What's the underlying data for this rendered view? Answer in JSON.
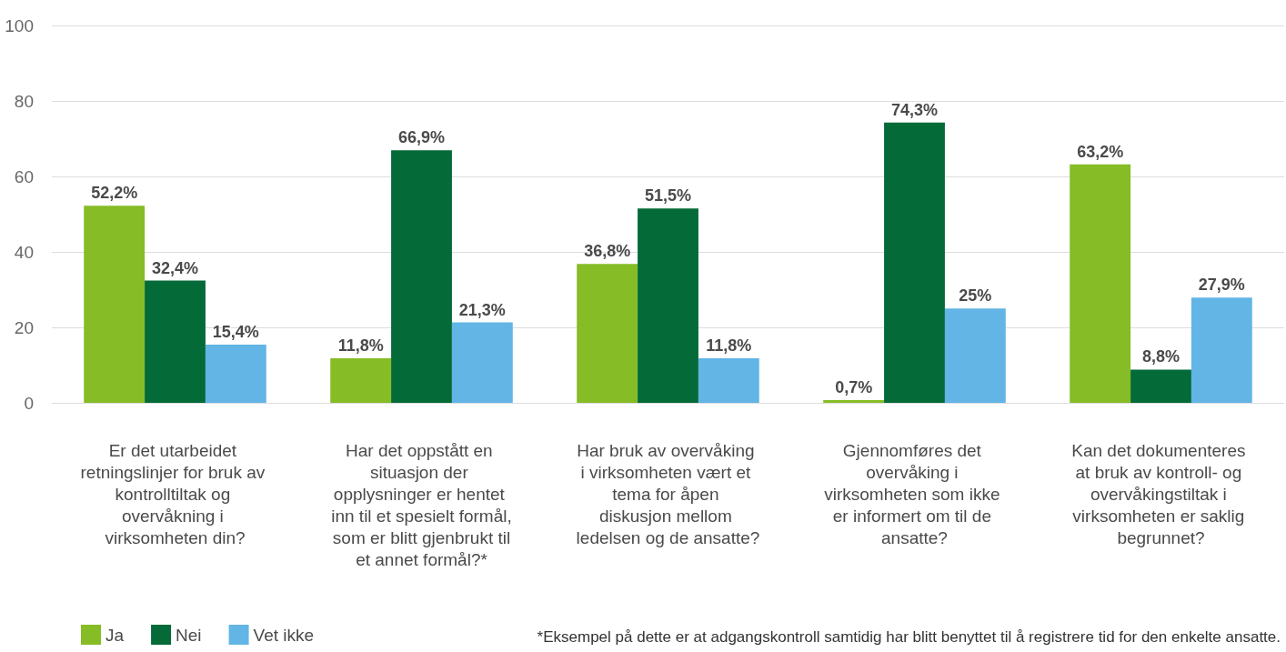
{
  "chart_data": {
    "type": "bar",
    "categories": [
      "Er det utarbeidet retningslinjer for bruk av kontrolltiltak og overvåkning i virksomheten din?",
      "Har det oppstått en situasjon der opplysninger er hentet inn til et spesielt formål, som er blitt gjenbrukt til et annet formål?*",
      "Har bruk av overvåking i virksomheten vært et tema for åpen diskusjon mellom ledelsen og de ansatte?",
      "Gjennomføres det overvåking i virksomheten som ikke er informert om til de ansatte?",
      "Kan det dokumenteres at bruk av kontroll- og overvåkingstiltak i virksomheten er saklig begrunnet?"
    ],
    "series": [
      {
        "name": "Ja",
        "color": "#86bc25",
        "values": [
          52.2,
          11.8,
          36.8,
          0.7,
          63.2
        ],
        "value_labels": [
          "52,2%",
          "11,8%",
          "36,8%",
          "0,7%",
          "63,2%"
        ]
      },
      {
        "name": "Nei",
        "color": "#046a38",
        "values": [
          32.4,
          66.9,
          51.5,
          74.3,
          8.8
        ],
        "value_labels": [
          "32,4%",
          "66,9%",
          "51,5%",
          "74,3%",
          "8,8%"
        ]
      },
      {
        "name": "Vet ikke",
        "color": "#62b5e5",
        "values": [
          15.4,
          21.3,
          11.8,
          25,
          27.9
        ],
        "value_labels": [
          "15,4%",
          "21,3%",
          "11,8%",
          "25%",
          "27,9%"
        ]
      }
    ],
    "ylim": [
      0,
      100
    ],
    "yticks": [
      0,
      20,
      40,
      60,
      80,
      100
    ],
    "grid": "y",
    "legend": "bottom left",
    "annotations": [
      "*Eksempel på dette er at adgangskontroll samtidig har blitt benyttet til å registrere tid for den enkelte ansatte."
    ]
  }
}
